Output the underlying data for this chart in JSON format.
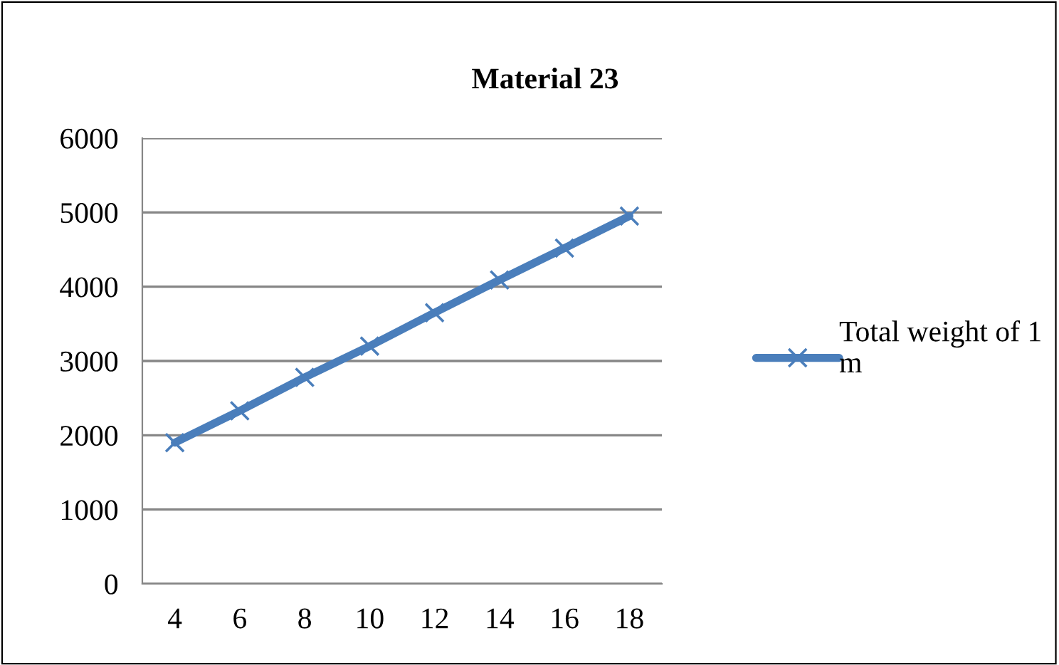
{
  "chart_data": {
    "type": "line",
    "title": "Material 23",
    "categories": [
      "4",
      "6",
      "8",
      "10",
      "12",
      "14",
      "16",
      "18"
    ],
    "series": [
      {
        "name": "Total weight of 1 m",
        "color": "#4a7ebb",
        "values": [
          1900,
          2330,
          2780,
          3200,
          3650,
          4090,
          4520,
          4950
        ]
      }
    ],
    "ylim": [
      0,
      6000
    ],
    "yticks": [
      0,
      1000,
      2000,
      3000,
      4000,
      5000,
      6000
    ],
    "grid": "y",
    "legend": "right",
    "marker": "cross",
    "line_style": "solid"
  }
}
